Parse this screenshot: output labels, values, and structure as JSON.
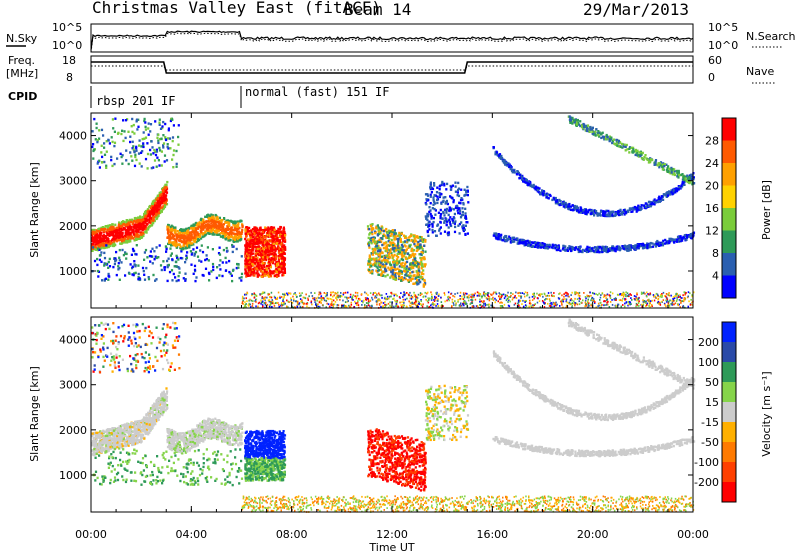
{
  "header": {
    "title": "Christmas Valley East (fitACF)",
    "beam": "Beam 14",
    "date": "29/Mar/2013"
  },
  "top_panel": {
    "left_label": "N.Sky",
    "left_ticks": [
      "10^5",
      "10^0"
    ],
    "right_label": "N.Search",
    "right_ticks": [
      "10^5",
      "10^0"
    ]
  },
  "freq_panel": {
    "left_label_1": "Freq.",
    "left_label_2": "[MHz]",
    "left_ticks": [
      "18",
      "8"
    ],
    "right_label": "Nave",
    "right_ticks": [
      "60",
      "0"
    ]
  },
  "cpid": {
    "label": "CPID",
    "segments": [
      {
        "label": "rbsp 201 IF",
        "start_hour": 0
      },
      {
        "label": "normal (fast) 151 IF",
        "start_hour": 6
      }
    ]
  },
  "chart_data": [
    {
      "type": "heatmap",
      "name": "power",
      "ylabel": "Slant Range [km]",
      "xlabel": "Time UT",
      "xlim_hours": [
        0,
        24
      ],
      "ylim_km": [
        180,
        4500
      ],
      "yticks": [
        1000,
        2000,
        3000,
        4000
      ],
      "xticks": [
        "00:00",
        "04:00",
        "08:00",
        "12:00",
        "16:00",
        "20:00",
        "00:00"
      ],
      "colorbar": {
        "label": "Power [dB]",
        "ticks": [
          "28",
          "24",
          "20",
          "16",
          "12",
          "8",
          "4"
        ],
        "colors": [
          "#ff0000",
          "#ff5a00",
          "#ffa000",
          "#ffd200",
          "#7acc3a",
          "#2e9a58",
          "#2a5fb0",
          "#0000ff"
        ]
      }
    },
    {
      "type": "heatmap",
      "name": "velocity",
      "ylabel": "Slant Range [km]",
      "xlabel": "Time UT",
      "xlim_hours": [
        0,
        24
      ],
      "ylim_km": [
        180,
        4500
      ],
      "yticks": [
        1000,
        2000,
        3000,
        4000
      ],
      "xticks": [
        "00:00",
        "04:00",
        "08:00",
        "12:00",
        "16:00",
        "20:00",
        "00:00"
      ],
      "colorbar": {
        "label": "Velocity [m s⁻¹]",
        "ticks": [
          "200",
          "100",
          "50",
          "15",
          "-15",
          "-50",
          "-100",
          "-200"
        ],
        "colors": [
          "#0022ff",
          "#2a4aa8",
          "#2e9a58",
          "#86d44a",
          "#cccccc",
          "#ffb000",
          "#ff7a00",
          "#ff4000",
          "#ff0000"
        ]
      }
    }
  ],
  "x_axis_title": "Time UT"
}
